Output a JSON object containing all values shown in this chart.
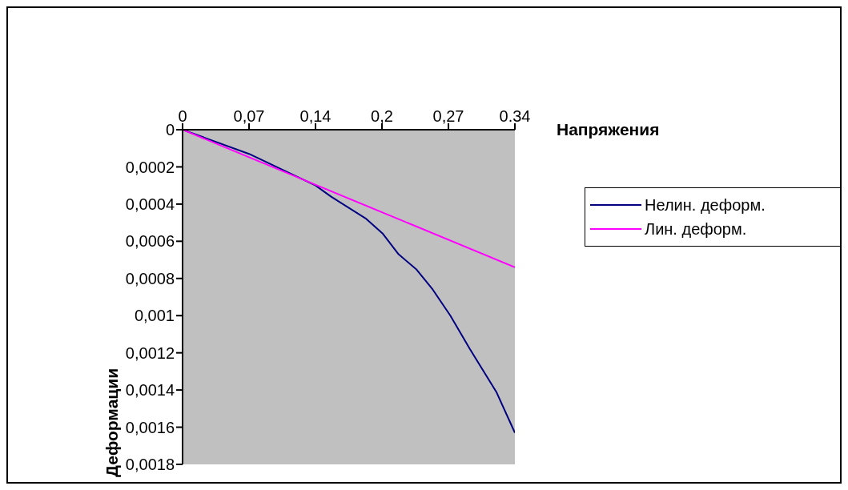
{
  "chart_data": {
    "type": "line",
    "xlabel": "Напряжения",
    "ylabel": "Деформации",
    "xlim": [
      0,
      0.34
    ],
    "xticks": [
      0,
      {
        "value": 0.068,
        "label": "0,07"
      },
      {
        "value": 0.136,
        "label": "0,14"
      },
      {
        "value": 0.204,
        "label": "0,2"
      },
      {
        "value": 0.272,
        "label": "0,27"
      },
      0.34
    ],
    "ylim": [
      0.0018,
      0
    ],
    "yticks": [
      0,
      {
        "value": 0.0002,
        "label": "0,0002"
      },
      {
        "value": 0.0004,
        "label": "0,0004"
      },
      {
        "value": 0.0006,
        "label": "0,0006"
      },
      {
        "value": 0.0008,
        "label": "0,0008"
      },
      {
        "value": 0.001,
        "label": "0,001"
      },
      {
        "value": 0.0012,
        "label": "0,0012"
      },
      {
        "value": 0.0014,
        "label": "0,0014"
      },
      {
        "value": 0.0016,
        "label": "0,0016"
      },
      {
        "value": 0.0018,
        "label": "0,0018"
      }
    ],
    "grid": false,
    "legend": "right",
    "marker": "none",
    "line_style": "solid",
    "series": [
      {
        "name": "Нелин. деформ.",
        "color": "#000080",
        "x": [
          0,
          0.068,
          0.136,
          0.152,
          0.188,
          0.205,
          0.221,
          0.239,
          0.256,
          0.274,
          0.294,
          0.321,
          0.34
        ],
        "values": [
          0,
          0.00013,
          0.0003,
          0.00036,
          0.00048,
          0.00056,
          0.00067,
          0.00075,
          0.00086,
          0.001,
          0.00118,
          0.00141,
          0.00163
        ]
      },
      {
        "name": "Лин. деформ.",
        "color": "#ff00ff",
        "x": [
          0,
          0.34
        ],
        "values": [
          0,
          0.00074
        ]
      }
    ]
  }
}
